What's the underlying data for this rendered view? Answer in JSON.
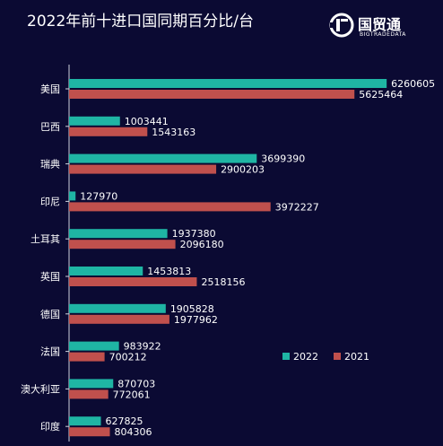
{
  "chart_data": {
    "type": "bar",
    "orientation": "horizontal",
    "title": "2022年前十进口国同期百分比/台",
    "categories": [
      "美国",
      "巴西",
      "瑞典",
      "印尼",
      "土耳其",
      "英国",
      "德国",
      "法国",
      "澳大利亚",
      "印度"
    ],
    "series": [
      {
        "name": "2022",
        "color": "#1fb5a4",
        "values": [
          6260605,
          1003441,
          3699390,
          127970,
          1937380,
          1453813,
          1905828,
          983922,
          870703,
          627825
        ]
      },
      {
        "name": "2021",
        "color": "#c0504d",
        "values": [
          5625464,
          1543163,
          2900203,
          3972227,
          2096180,
          2518156,
          1977962,
          700212,
          772061,
          804306
        ]
      }
    ],
    "xlim": [
      0,
      7000000
    ],
    "grid": false,
    "legend": "right"
  },
  "logo": {
    "name": "国贸通",
    "sub": "BIGTRADEDATA"
  },
  "colors": {
    "background": "#0b0a33",
    "axis": "#cfd2dc"
  }
}
